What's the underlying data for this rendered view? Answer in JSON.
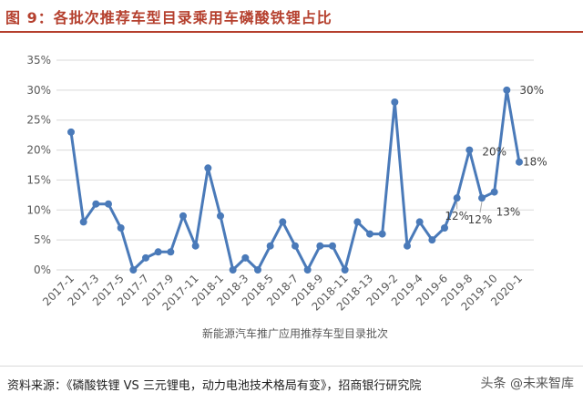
{
  "title": "图 9：各批次推荐车型目录乘用车磷酸铁锂占比",
  "source": "资料来源：《磷酸铁锂 VS 三元锂电，动力电池技术格局有变》，招商银行研究院",
  "watermark": "头条 @未来智库",
  "colors": {
    "title": "#b5402e",
    "line": "#4a7ab9",
    "grid": "#d9d9d9",
    "text": "#595959"
  },
  "chart_data": {
    "type": "line",
    "title": "",
    "xlabel": "新能源汽车推广应用推荐车型目录批次",
    "ylabel": "",
    "ylim": [
      0,
      35
    ],
    "yticks": [
      "0%",
      "5%",
      "10%",
      "15%",
      "20%",
      "25%",
      "30%",
      "35%"
    ],
    "grid": true,
    "categories": [
      "2017-1",
      "2017-2",
      "2017-3",
      "2017-4",
      "2017-5",
      "2017-6",
      "2017-7",
      "2017-8",
      "2017-9",
      "2017-10",
      "2017-11",
      "2017-12",
      "2018-1",
      "2018-2",
      "2018-3",
      "2018-4",
      "2018-5",
      "2018-6",
      "2018-7",
      "2018-8",
      "2018-9",
      "2018-10",
      "2018-11",
      "2018-12",
      "2018-13",
      "2018-14",
      "2019-2",
      "2019-3",
      "2019-4",
      "2019-5",
      "2019-6",
      "2019-7",
      "2019-8",
      "2019-9",
      "2019-10",
      "2019-11",
      "2020-1"
    ],
    "tick_labels_shown": [
      "2017-1",
      "2017-3",
      "2017-5",
      "2017-7",
      "2017-9",
      "2017-11",
      "2018-1",
      "2018-3",
      "2018-5",
      "2018-7",
      "2018-9",
      "2018-11",
      "2018-13",
      "2019-2",
      "2019-4",
      "2019-6",
      "2019-8",
      "2019-10",
      "2020-1"
    ],
    "series": [
      {
        "values": [
          23,
          8,
          11,
          11,
          7,
          0,
          2,
          3,
          3,
          9,
          4,
          17,
          9,
          0,
          2,
          0,
          4,
          8,
          4,
          0,
          4,
          4,
          0,
          8,
          6,
          6,
          28,
          4,
          8,
          5,
          7,
          12,
          20,
          12,
          13,
          30,
          18
        ]
      }
    ],
    "annotations": [
      {
        "index": 31,
        "label": "12%"
      },
      {
        "index": 32,
        "label": "20%"
      },
      {
        "index": 33,
        "label": "12%"
      },
      {
        "index": 34,
        "label": "13%"
      },
      {
        "index": 35,
        "label": "30%"
      },
      {
        "index": 36,
        "label": "18%"
      }
    ]
  }
}
